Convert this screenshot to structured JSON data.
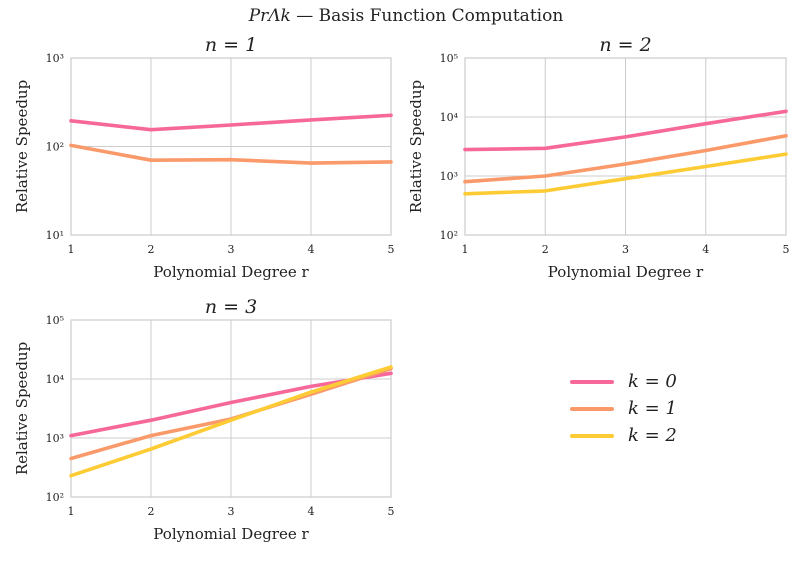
{
  "figure": {
    "title_prefix": "PrΛk",
    "title_text": " — Basis Function Computation"
  },
  "colors": {
    "k0": "#f7689a",
    "k1": "#fa9a6a",
    "k2": "#fdcc35",
    "grid": "#cccccc",
    "frame": "#cccccc"
  },
  "chart_data": [
    {
      "type": "line",
      "title": "n = 1",
      "xlabel": "Polynomial Degree r",
      "ylabel": "Relative Speedup",
      "yscale": "log",
      "xlim": [
        1,
        5
      ],
      "ylim": [
        10,
        1000
      ],
      "yticks": [
        "10¹",
        "10²",
        "10³"
      ],
      "x": [
        1,
        2,
        3,
        4,
        5
      ],
      "series": [
        {
          "name": "k = 0",
          "values": [
            195,
            155,
            175,
            200,
            225
          ]
        },
        {
          "name": "k = 1",
          "values": [
            103,
            70,
            71,
            65,
            67
          ]
        }
      ]
    },
    {
      "type": "line",
      "title": "n = 2",
      "xlabel": "Polynomial Degree r",
      "ylabel": "Relative Speedup",
      "yscale": "log",
      "xlim": [
        1,
        5
      ],
      "ylim": [
        100,
        100000
      ],
      "yticks": [
        "10²",
        "10³",
        "10⁴",
        "10⁵"
      ],
      "x": [
        1,
        2,
        3,
        4,
        5
      ],
      "series": [
        {
          "name": "k = 0",
          "values": [
            2800,
            2950,
            4600,
            7700,
            12500
          ]
        },
        {
          "name": "k = 1",
          "values": [
            800,
            1000,
            1600,
            2700,
            4800
          ]
        },
        {
          "name": "k = 2",
          "values": [
            500,
            560,
            900,
            1450,
            2350
          ]
        }
      ]
    },
    {
      "type": "line",
      "title": "n = 3",
      "xlabel": "Polynomial Degree r",
      "ylabel": "Relative Speedup",
      "yscale": "log",
      "xlim": [
        1,
        5
      ],
      "ylim": [
        100,
        100000
      ],
      "yticks": [
        "10²",
        "10³",
        "10⁴",
        "10⁵"
      ],
      "x": [
        1,
        2,
        3,
        4,
        5
      ],
      "series": [
        {
          "name": "k = 0",
          "values": [
            1100,
            2000,
            4000,
            7500,
            12500
          ]
        },
        {
          "name": "k = 1",
          "values": [
            450,
            1100,
            2100,
            5500,
            15000
          ]
        },
        {
          "name": "k = 2",
          "values": [
            230,
            650,
            2000,
            6000,
            16000
          ]
        }
      ]
    }
  ],
  "legend": {
    "entries": [
      {
        "label": "k = 0",
        "color": "#f7689a"
      },
      {
        "label": "k = 1",
        "color": "#fa9a6a"
      },
      {
        "label": "k = 2",
        "color": "#fdcc35"
      }
    ]
  }
}
